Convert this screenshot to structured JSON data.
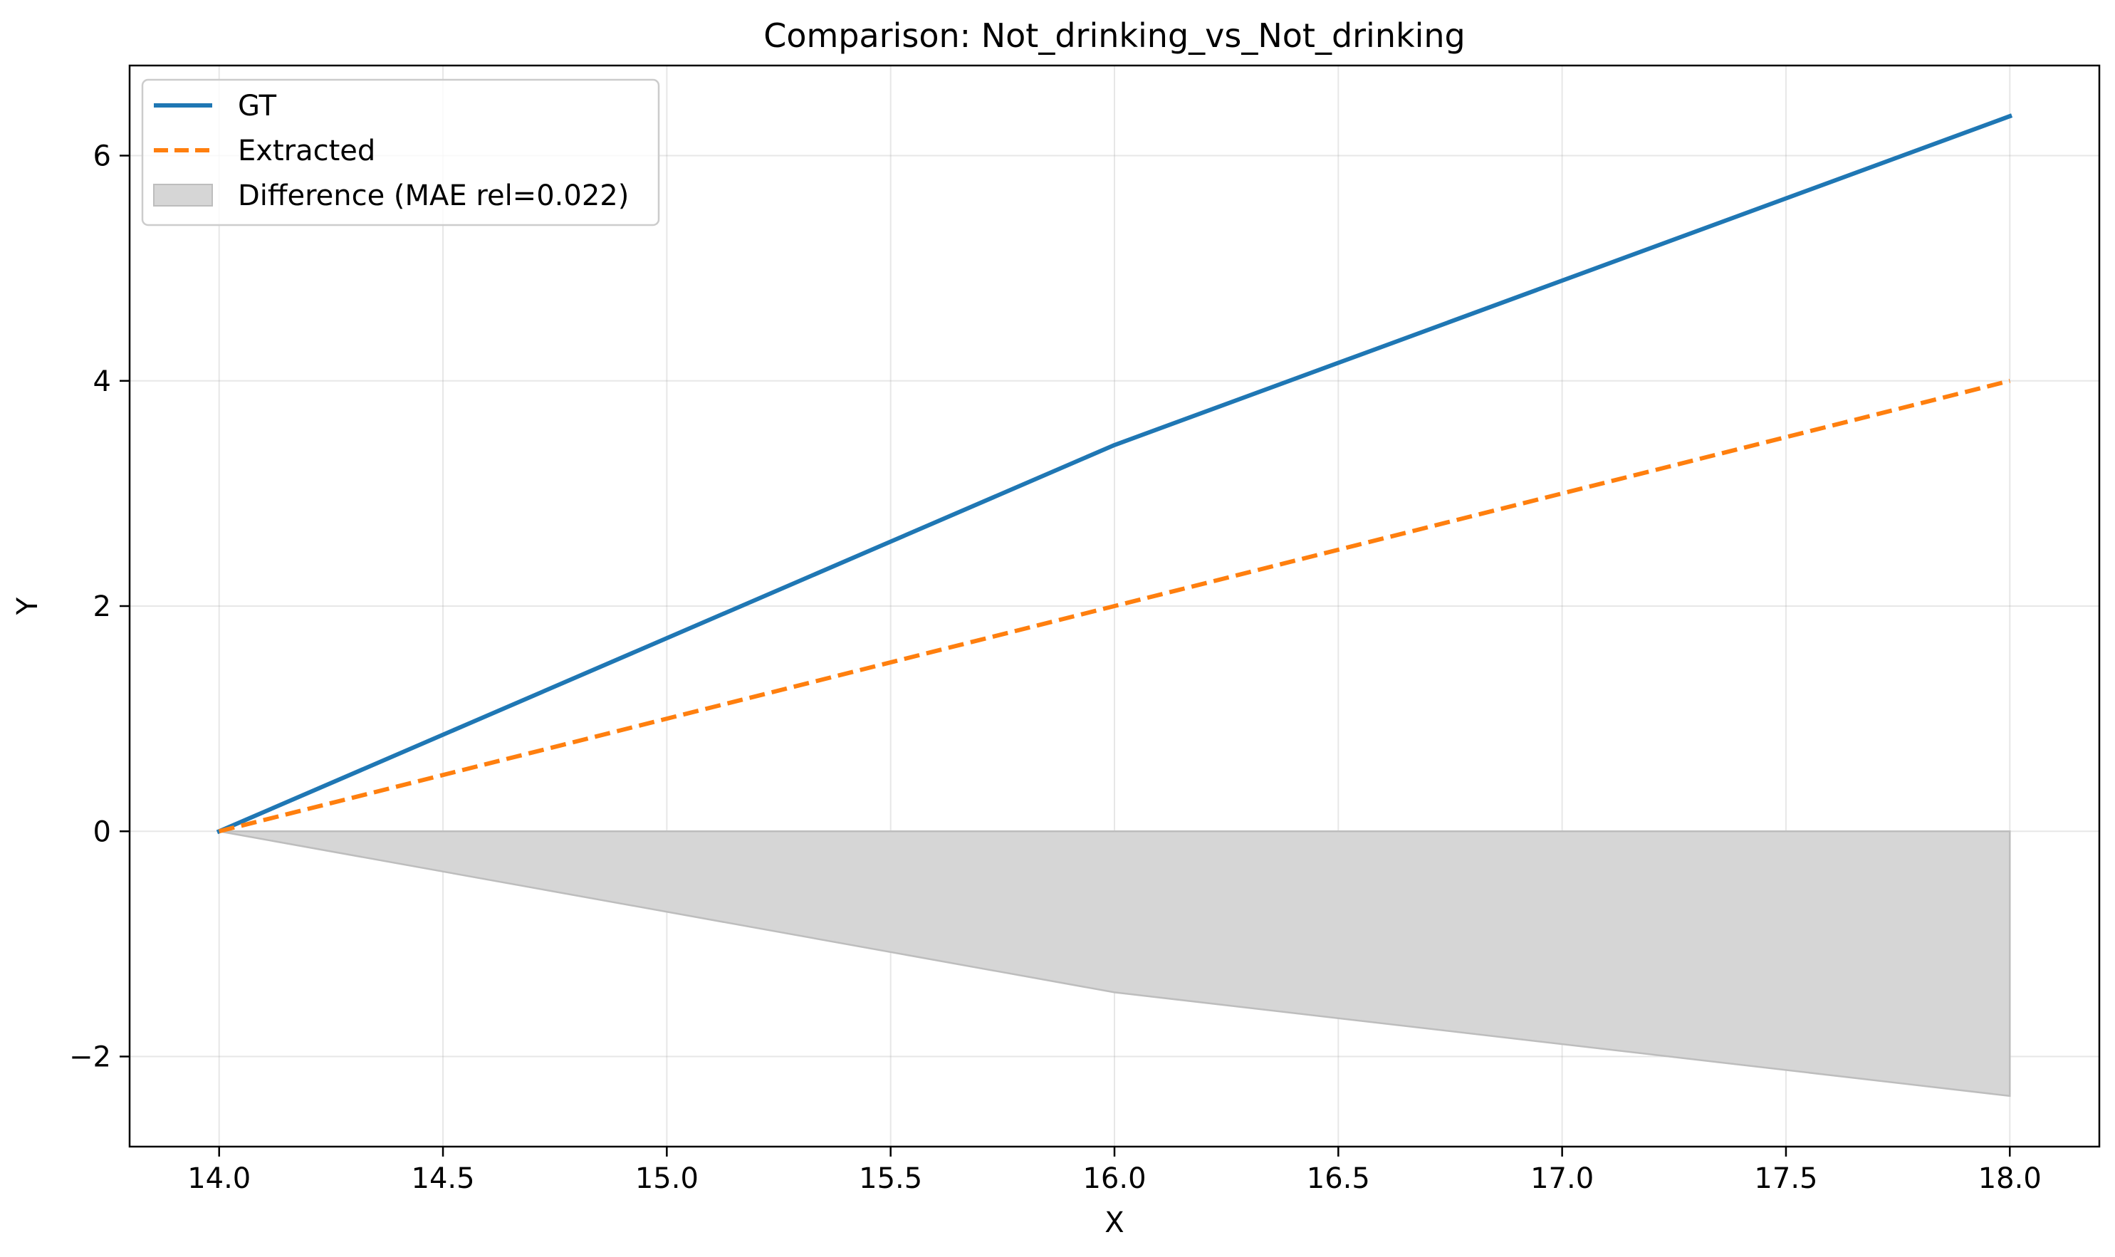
{
  "chart_data": {
    "type": "line",
    "title": "Comparison: Not_drinking_vs_Not_drinking",
    "xlabel": "X",
    "ylabel": "Y",
    "xlim": [
      13.8,
      18.2
    ],
    "ylim": [
      -2.8,
      6.8
    ],
    "xticks": [
      14.0,
      14.5,
      15.0,
      15.5,
      16.0,
      16.5,
      17.0,
      17.5,
      18.0
    ],
    "yticks": [
      -2,
      0,
      2,
      4,
      6
    ],
    "grid": true,
    "legend_position": "upper-left",
    "series": [
      {
        "name": "GT",
        "style": "solid",
        "color": "#1f77b4",
        "x": [
          14.0,
          16.0,
          18.0
        ],
        "y": [
          0.0,
          3.43,
          6.35
        ]
      },
      {
        "name": "Extracted",
        "style": "dashed",
        "color": "#ff7f0e",
        "x": [
          14.0,
          16.0,
          18.0
        ],
        "y": [
          0.0,
          2.0,
          4.0
        ]
      }
    ],
    "fill": {
      "name": "Difference (MAE rel=0.022)",
      "color": "#d6d6d6",
      "x": [
        14.0,
        16.0,
        18.0
      ],
      "y": [
        0.0,
        -1.43,
        -2.35
      ]
    }
  }
}
